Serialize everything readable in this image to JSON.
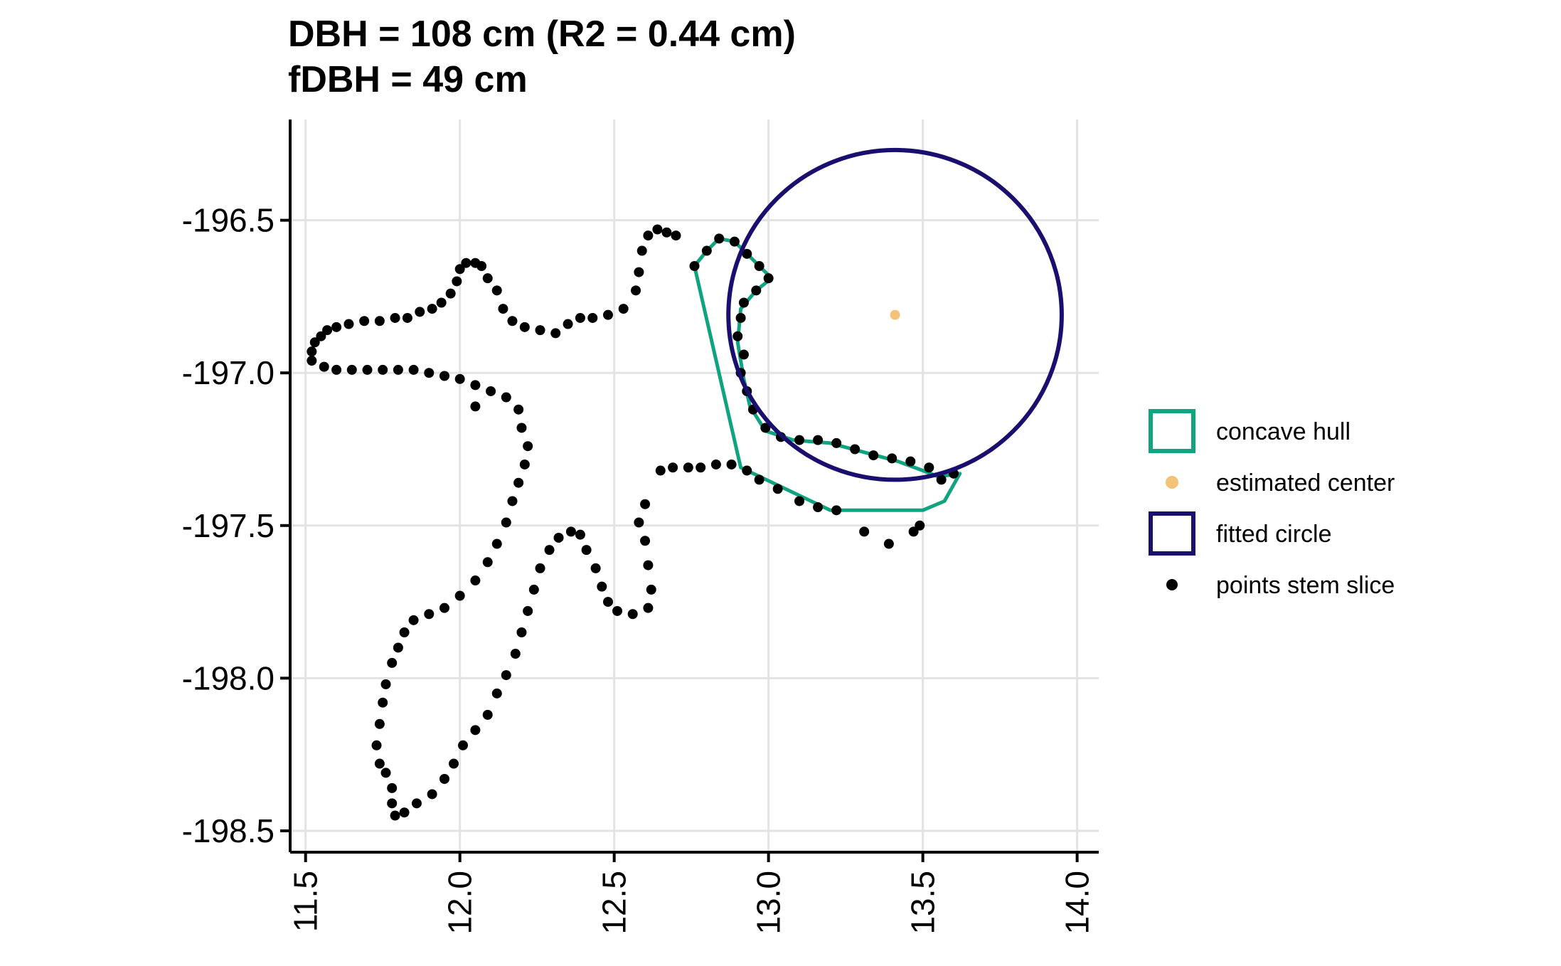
{
  "colors": {
    "hull": "#10a37f",
    "center": "#f5c27a",
    "circle": "#1a0f6e",
    "points": "#000000",
    "grid": "#e3e3e3"
  },
  "chart_data": {
    "type": "scatter",
    "title": "DBH = 108 cm (R2 = 0.44 cm)",
    "subtitle": "fDBH = 49 cm",
    "xlabel": "",
    "ylabel": "",
    "xlim": [
      11.45,
      14.07
    ],
    "ylim": [
      -198.57,
      -196.17
    ],
    "x_ticks": [
      "11.5",
      "12.0",
      "12.5",
      "13.0",
      "13.5",
      "14.0"
    ],
    "y_ticks": [
      "-196.5",
      "-197.0",
      "-197.5",
      "-198.0",
      "-198.5"
    ],
    "grid": true,
    "legend_position": "right",
    "legend": [
      {
        "label": "concave hull",
        "key": "hull"
      },
      {
        "label": "estimated center",
        "key": "center"
      },
      {
        "label": "fitted circle",
        "key": "circle"
      },
      {
        "label": "points stem slice",
        "key": "points"
      }
    ],
    "estimated_center": {
      "x": 13.41,
      "y": -196.81
    },
    "fitted_circle": {
      "center_x": 13.41,
      "center_y": -196.81,
      "radius": 0.54
    },
    "concave_hull": [
      [
        12.76,
        -196.65
      ],
      [
        12.8,
        -196.6
      ],
      [
        12.84,
        -196.56
      ],
      [
        12.89,
        -196.57
      ],
      [
        12.95,
        -196.63
      ],
      [
        13.01,
        -196.69
      ],
      [
        12.96,
        -196.73
      ],
      [
        12.91,
        -196.79
      ],
      [
        12.9,
        -196.9
      ],
      [
        12.92,
        -197.02
      ],
      [
        12.94,
        -197.11
      ],
      [
        12.99,
        -197.19
      ],
      [
        13.08,
        -197.22
      ],
      [
        13.2,
        -197.23
      ],
      [
        13.31,
        -197.26
      ],
      [
        13.42,
        -197.29
      ],
      [
        13.5,
        -197.32
      ],
      [
        13.55,
        -197.34
      ],
      [
        13.62,
        -197.33
      ],
      [
        13.57,
        -197.42
      ],
      [
        13.5,
        -197.45
      ],
      [
        13.2,
        -197.45
      ],
      [
        12.91,
        -197.31
      ],
      [
        12.76,
        -196.65
      ]
    ],
    "stem_slice": [
      [
        11.52,
        -196.93
      ],
      [
        11.52,
        -196.96
      ],
      [
        11.53,
        -196.9
      ],
      [
        11.55,
        -196.88
      ],
      [
        11.57,
        -196.86
      ],
      [
        11.6,
        -196.85
      ],
      [
        11.64,
        -196.84
      ],
      [
        11.69,
        -196.83
      ],
      [
        11.74,
        -196.83
      ],
      [
        11.79,
        -196.82
      ],
      [
        11.83,
        -196.82
      ],
      [
        11.87,
        -196.8
      ],
      [
        11.91,
        -196.79
      ],
      [
        11.94,
        -196.77
      ],
      [
        11.97,
        -196.74
      ],
      [
        11.99,
        -196.7
      ],
      [
        12.0,
        -196.66
      ],
      [
        12.02,
        -196.64
      ],
      [
        12.05,
        -196.64
      ],
      [
        12.07,
        -196.65
      ],
      [
        12.09,
        -196.69
      ],
      [
        12.12,
        -196.73
      ],
      [
        12.14,
        -196.79
      ],
      [
        12.17,
        -196.83
      ],
      [
        12.21,
        -196.85
      ],
      [
        12.26,
        -196.86
      ],
      [
        12.31,
        -196.87
      ],
      [
        12.35,
        -196.84
      ],
      [
        12.39,
        -196.82
      ],
      [
        12.43,
        -196.82
      ],
      [
        12.48,
        -196.81
      ],
      [
        12.53,
        -196.79
      ],
      [
        12.57,
        -196.73
      ],
      [
        12.58,
        -196.67
      ],
      [
        12.59,
        -196.6
      ],
      [
        12.61,
        -196.55
      ],
      [
        12.64,
        -196.53
      ],
      [
        12.67,
        -196.54
      ],
      [
        12.7,
        -196.55
      ],
      [
        11.56,
        -196.98
      ],
      [
        11.6,
        -196.99
      ],
      [
        11.65,
        -196.99
      ],
      [
        11.7,
        -196.99
      ],
      [
        11.75,
        -196.99
      ],
      [
        11.8,
        -196.99
      ],
      [
        11.85,
        -196.99
      ],
      [
        11.9,
        -197.0
      ],
      [
        11.95,
        -197.01
      ],
      [
        12.0,
        -197.02
      ],
      [
        12.05,
        -197.04
      ],
      [
        12.1,
        -197.06
      ],
      [
        12.15,
        -197.08
      ],
      [
        12.19,
        -197.12
      ],
      [
        12.2,
        -197.18
      ],
      [
        12.22,
        -197.24
      ],
      [
        12.21,
        -197.3
      ],
      [
        12.19,
        -197.36
      ],
      [
        12.17,
        -197.42
      ],
      [
        12.15,
        -197.49
      ],
      [
        12.12,
        -197.56
      ],
      [
        12.09,
        -197.62
      ],
      [
        12.05,
        -197.68
      ],
      [
        12.0,
        -197.73
      ],
      [
        11.95,
        -197.77
      ],
      [
        11.9,
        -197.79
      ],
      [
        11.85,
        -197.81
      ],
      [
        11.82,
        -197.85
      ],
      [
        11.8,
        -197.9
      ],
      [
        11.78,
        -197.95
      ],
      [
        11.76,
        -198.02
      ],
      [
        11.75,
        -198.08
      ],
      [
        11.74,
        -198.15
      ],
      [
        11.73,
        -198.22
      ],
      [
        11.74,
        -198.28
      ],
      [
        11.76,
        -198.31
      ],
      [
        11.78,
        -198.36
      ],
      [
        11.78,
        -198.41
      ],
      [
        11.79,
        -198.45
      ],
      [
        12.05,
        -197.11
      ],
      [
        11.82,
        -198.44
      ],
      [
        11.86,
        -198.41
      ],
      [
        11.91,
        -198.38
      ],
      [
        11.95,
        -198.33
      ],
      [
        11.98,
        -198.28
      ],
      [
        12.01,
        -198.22
      ],
      [
        12.05,
        -198.17
      ],
      [
        12.09,
        -198.12
      ],
      [
        12.12,
        -198.05
      ],
      [
        12.15,
        -197.99
      ],
      [
        12.18,
        -197.92
      ],
      [
        12.2,
        -197.85
      ],
      [
        12.22,
        -197.78
      ],
      [
        12.24,
        -197.71
      ],
      [
        12.26,
        -197.64
      ],
      [
        12.29,
        -197.58
      ],
      [
        12.32,
        -197.54
      ],
      [
        12.36,
        -197.52
      ],
      [
        12.39,
        -197.53
      ],
      [
        12.41,
        -197.58
      ],
      [
        12.44,
        -197.64
      ],
      [
        12.46,
        -197.7
      ],
      [
        12.48,
        -197.75
      ],
      [
        12.51,
        -197.78
      ],
      [
        12.56,
        -197.79
      ],
      [
        12.61,
        -197.77
      ],
      [
        12.62,
        -197.71
      ],
      [
        12.61,
        -197.63
      ],
      [
        12.6,
        -197.55
      ],
      [
        12.58,
        -197.49
      ],
      [
        12.6,
        -197.43
      ],
      [
        12.65,
        -197.32
      ],
      [
        12.69,
        -197.31
      ],
      [
        12.74,
        -197.31
      ],
      [
        12.78,
        -197.31
      ],
      [
        12.83,
        -197.3
      ],
      [
        12.88,
        -197.3
      ],
      [
        12.93,
        -197.32
      ],
      [
        12.97,
        -197.35
      ],
      [
        13.03,
        -197.38
      ],
      [
        13.1,
        -197.42
      ],
      [
        13.16,
        -197.44
      ],
      [
        13.22,
        -197.45
      ],
      [
        13.31,
        -197.52
      ],
      [
        13.39,
        -197.56
      ],
      [
        13.47,
        -197.52
      ],
      [
        13.49,
        -197.5
      ],
      [
        12.76,
        -196.65
      ],
      [
        12.8,
        -196.6
      ],
      [
        12.84,
        -196.56
      ],
      [
        12.89,
        -196.57
      ],
      [
        12.93,
        -196.61
      ],
      [
        12.97,
        -196.65
      ],
      [
        13.0,
        -196.69
      ],
      [
        12.96,
        -196.73
      ],
      [
        12.92,
        -196.77
      ],
      [
        12.91,
        -196.82
      ],
      [
        12.9,
        -196.88
      ],
      [
        12.92,
        -196.94
      ],
      [
        12.91,
        -197.0
      ],
      [
        12.93,
        -197.06
      ],
      [
        12.95,
        -197.12
      ],
      [
        12.99,
        -197.18
      ],
      [
        13.04,
        -197.21
      ],
      [
        13.1,
        -197.22
      ],
      [
        13.16,
        -197.22
      ],
      [
        13.22,
        -197.23
      ],
      [
        13.28,
        -197.25
      ],
      [
        13.34,
        -197.27
      ],
      [
        13.4,
        -197.28
      ],
      [
        13.46,
        -197.29
      ],
      [
        13.52,
        -197.31
      ],
      [
        13.56,
        -197.35
      ],
      [
        13.6,
        -197.33
      ]
    ]
  }
}
